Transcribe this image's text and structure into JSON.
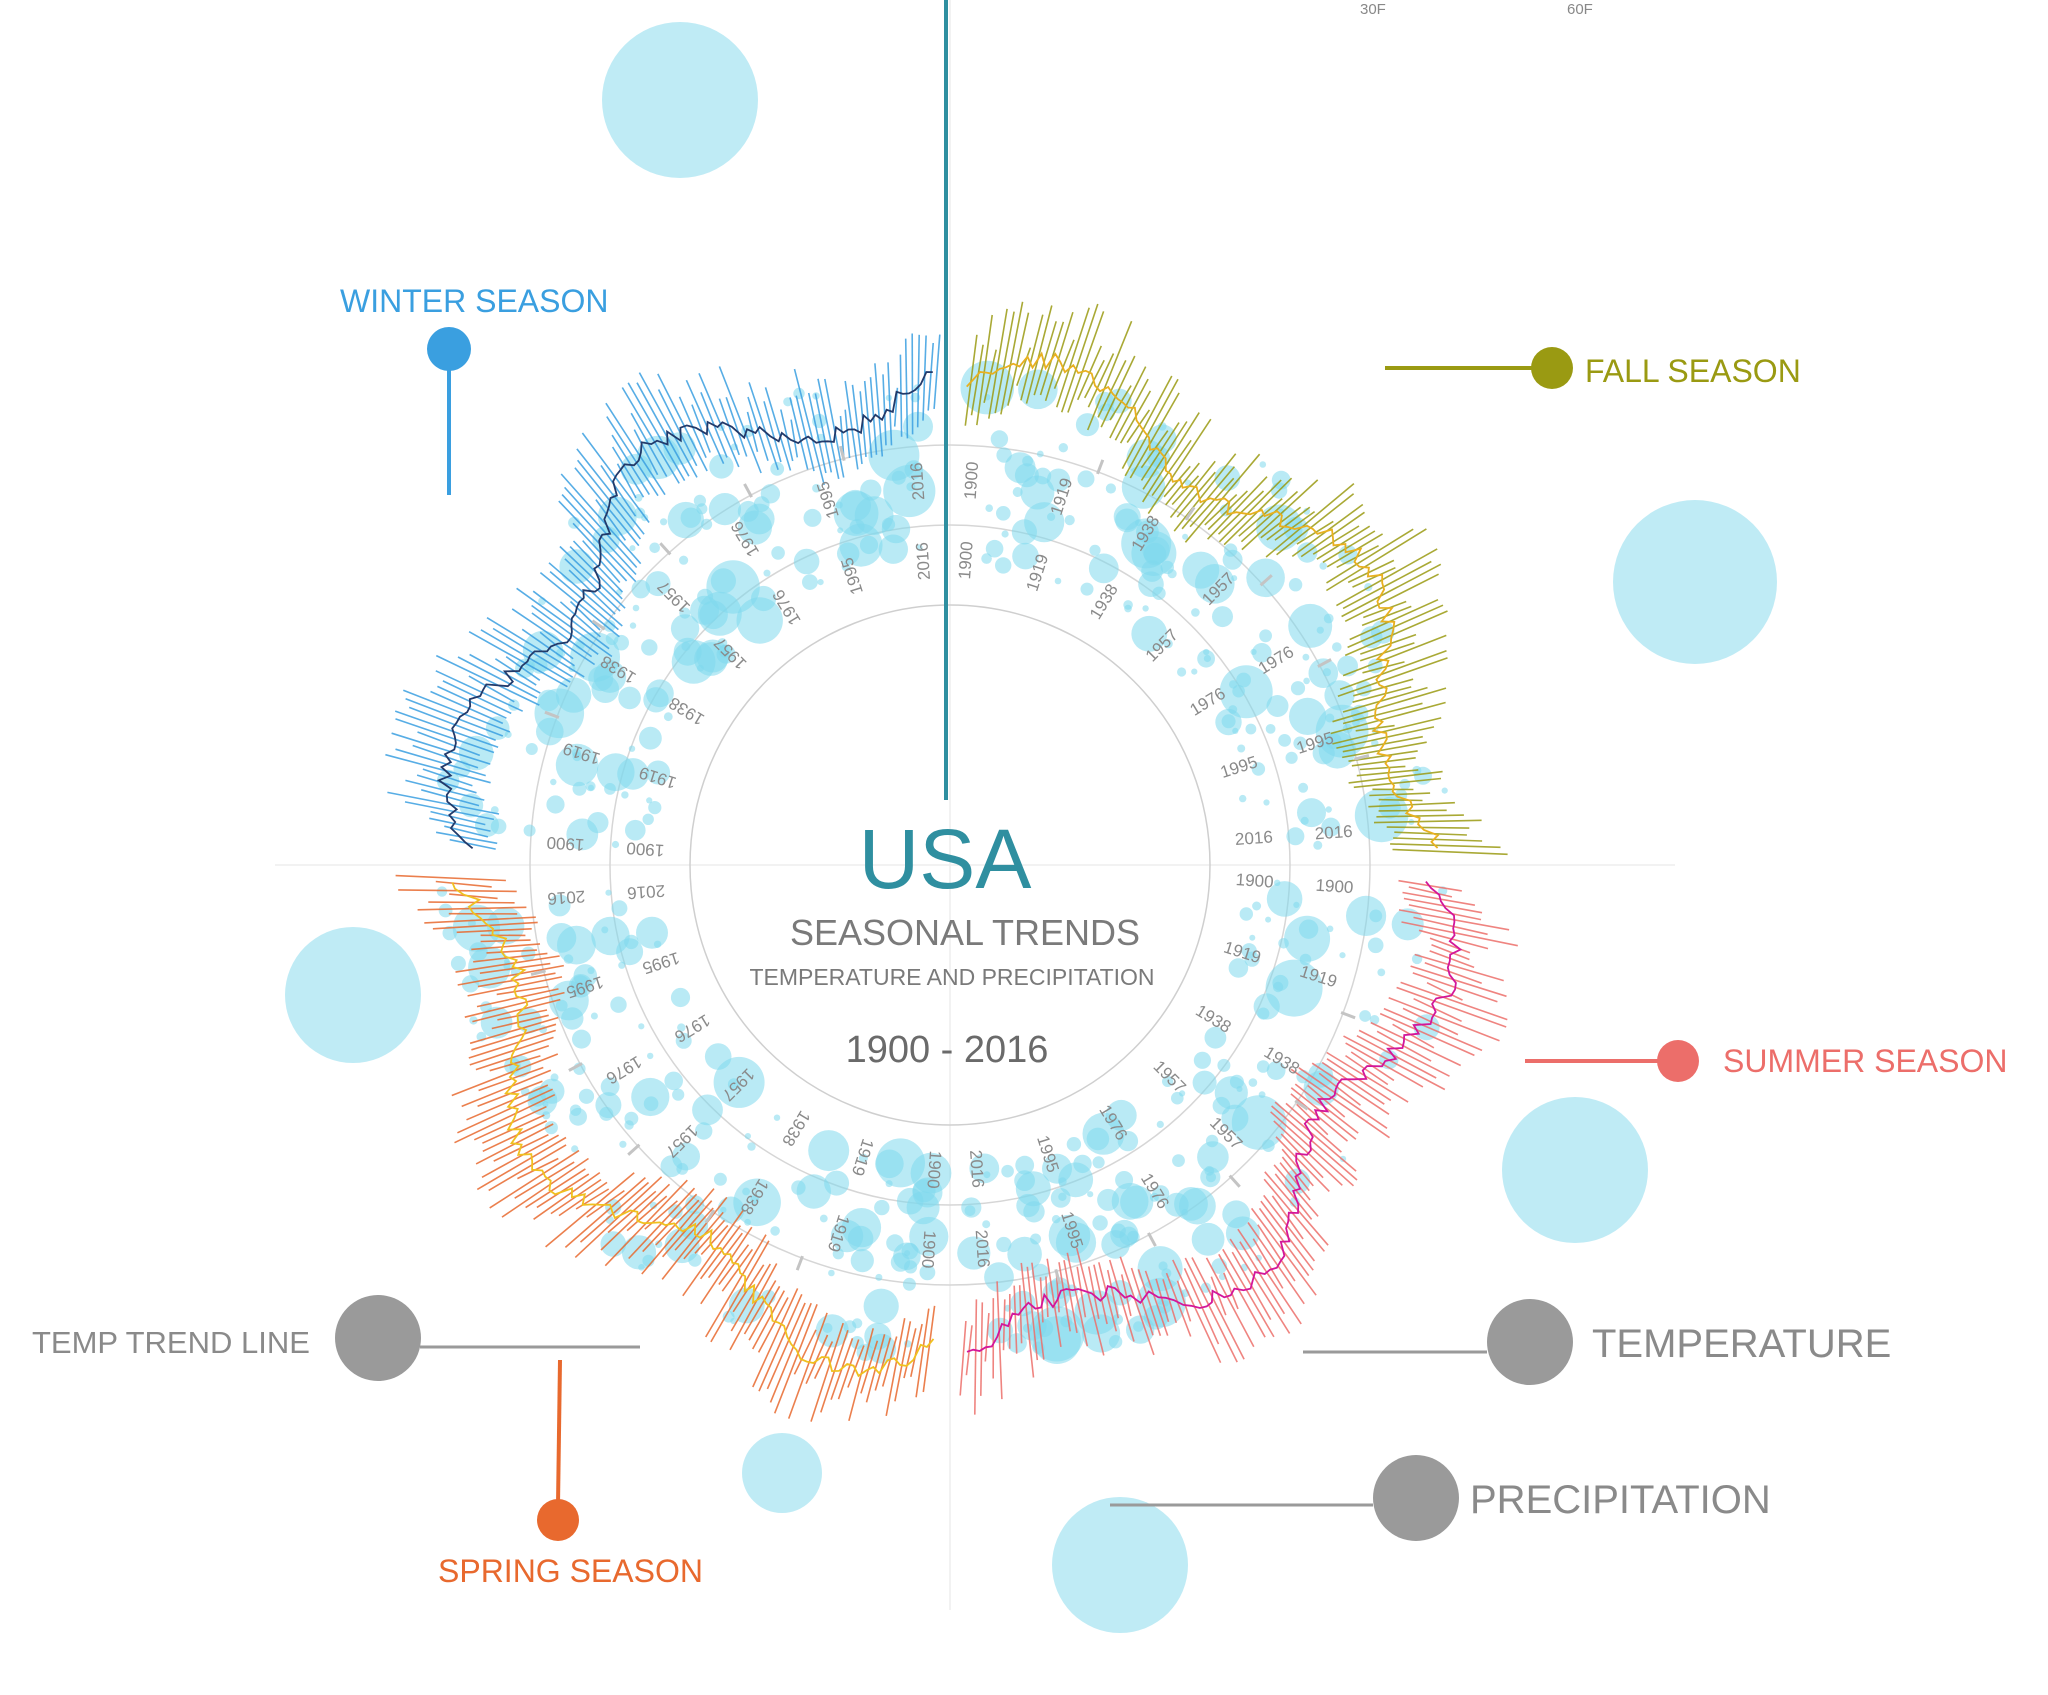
{
  "chart_data": {
    "type": "radial",
    "title": "USA",
    "subtitle": "SEASONAL TRENDS",
    "description": "TEMPERATURE AND PRECIPITATION",
    "date_range": "1900 - 2016",
    "top_scale_labels": [
      "30F",
      "60F"
    ],
    "year_ticks": [
      "1900",
      "1919",
      "1938",
      "1957",
      "1976",
      "1995",
      "2016"
    ],
    "seasons": [
      {
        "name": "WINTER SEASON",
        "color": "#3a9fe0",
        "line_color": "#223a6a"
      },
      {
        "name": "FALL SEASON",
        "color": "#9a9a12",
        "line_color": "#e8b020"
      },
      {
        "name": "SUMMER SEASON",
        "color": "#ec6e6a",
        "line_color": "#d3169a"
      },
      {
        "name": "SPRING SEASON",
        "color": "#e8692e",
        "line_color": "#f0c020"
      }
    ],
    "legend": {
      "temp_trend_line": "TEMP TREND LINE",
      "temperature": "TEMPERATURE",
      "precipitation": "PRECIPITATION"
    },
    "colors": {
      "precipitation": "#7fd8ec",
      "title": "#2f8fa0",
      "legend_dot": "#9a9a9a",
      "ring": "#c9c9c9",
      "center_line": "#2f8fa0"
    }
  }
}
